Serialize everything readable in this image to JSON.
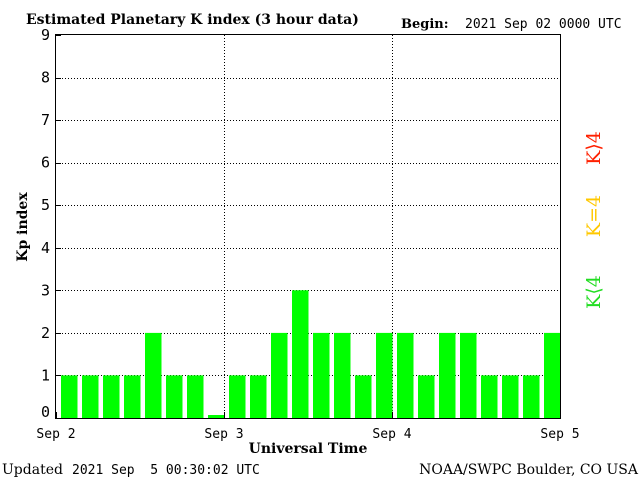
{
  "header": {
    "title": "Estimated Planetary K index (3 hour data)",
    "begin_label": "Begin:",
    "begin_value": "2021 Sep 02 0000 UTC"
  },
  "footer": {
    "updated_label": "Updated",
    "updated_value": "2021 Sep  5 00:30:02 UTC",
    "source": "NOAA/SWPC Boulder, CO USA"
  },
  "legend": {
    "high": {
      "label": "K⟩4",
      "color": "#ff2000"
    },
    "equal": {
      "label": "K=4",
      "color": "#ffc800"
    },
    "low": {
      "label": "K⟨4",
      "color": "#22dd22"
    }
  },
  "chart_data": {
    "type": "bar",
    "title": "Estimated Planetary K index (3 hour data)",
    "xlabel": "Universal Time",
    "ylabel": "Kp index",
    "ylim": [
      0,
      9
    ],
    "yticks": [
      "0",
      "1",
      "2",
      "3",
      "4",
      "5",
      "6",
      "7",
      "8",
      "9"
    ],
    "xtick_labels": [
      "Sep 2",
      "Sep 3",
      "Sep 4",
      "Sep 5"
    ],
    "grid": true,
    "bar_color": "#00ff00",
    "values": [
      1,
      1,
      1,
      1,
      2,
      1,
      1,
      0.07,
      1,
      1,
      2,
      3,
      2,
      2,
      1,
      2,
      2,
      1,
      2,
      2,
      1,
      1,
      1,
      2
    ]
  }
}
